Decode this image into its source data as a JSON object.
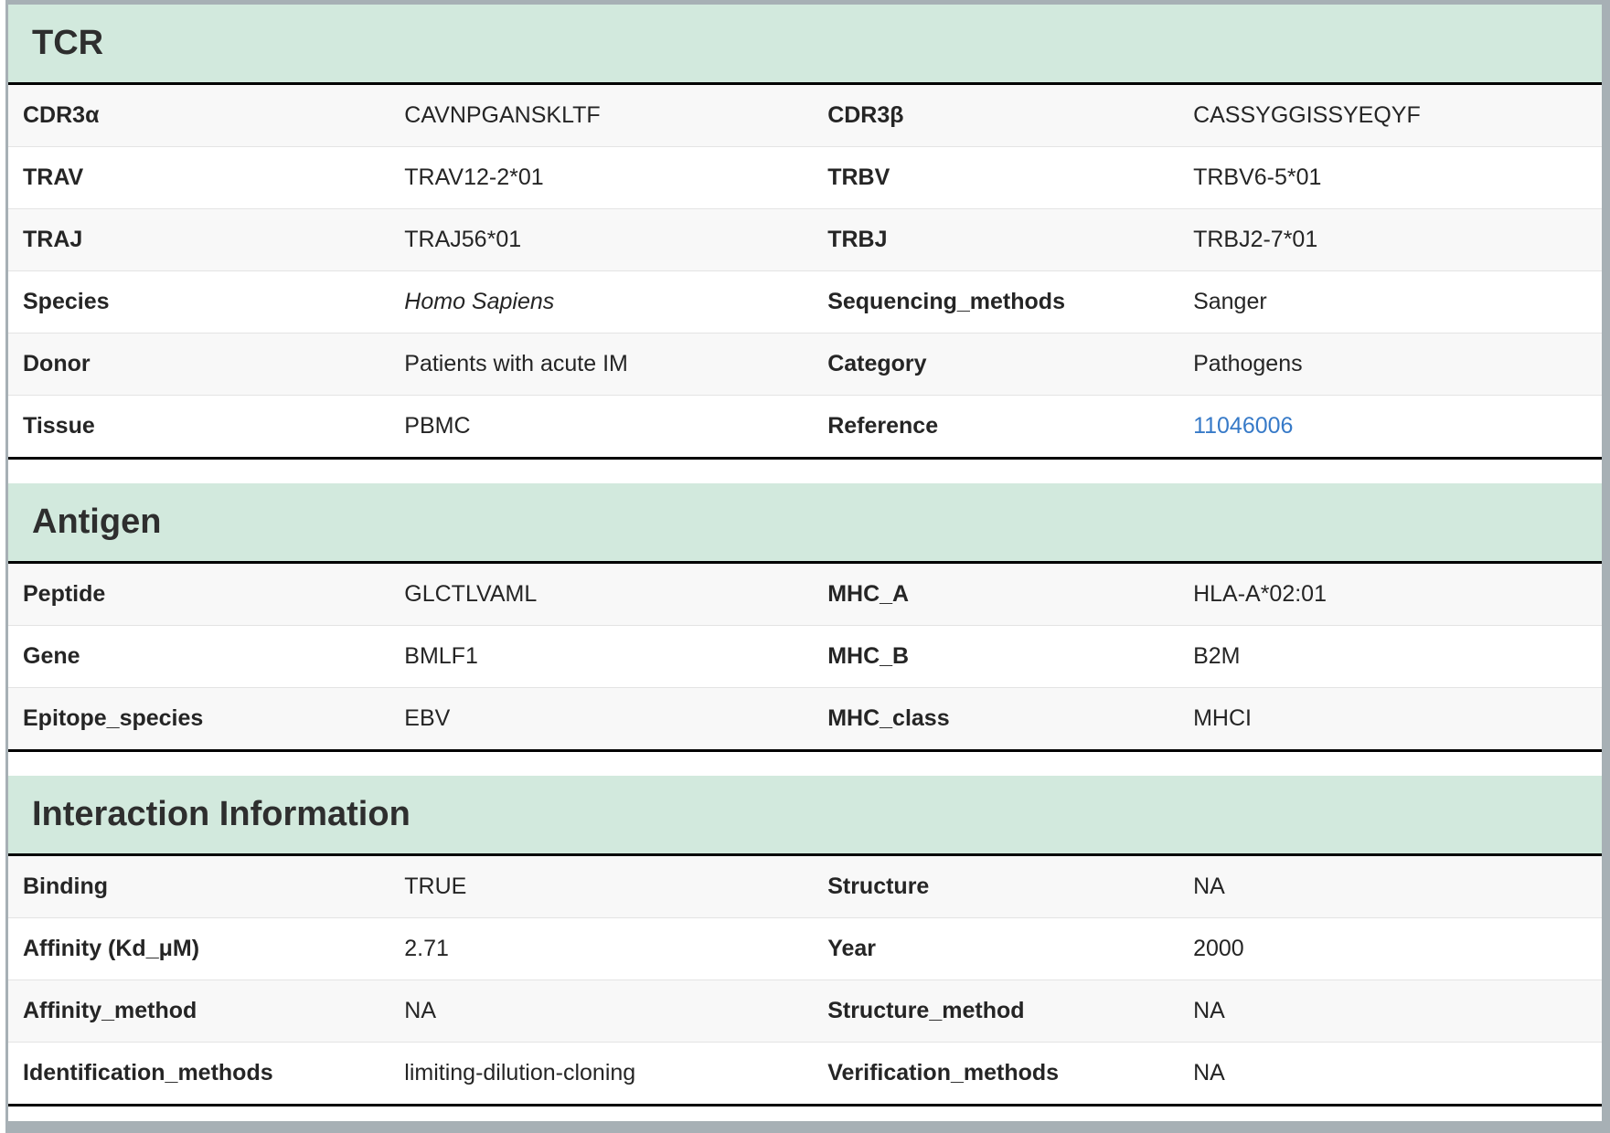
{
  "colors": {
    "section_header_bg": "#d2e9dd",
    "striped_row_bg": "#f8f8f8",
    "frame_gray": "#a7b0b5",
    "section_border": "#000000",
    "link_blue": "#377ac8"
  },
  "tcr": {
    "title": "TCR",
    "rows": [
      {
        "l1": "CDR3α",
        "v1": "CAVNPGANSKLTF",
        "l2": "CDR3β",
        "v2": "CASSYGGISSYEQYF"
      },
      {
        "l1": "TRAV",
        "v1": "TRAV12-2*01",
        "l2": "TRBV",
        "v2": "TRBV6-5*01"
      },
      {
        "l1": "TRAJ",
        "v1": "TRAJ56*01",
        "l2": "TRBJ",
        "v2": "TRBJ2-7*01"
      },
      {
        "l1": "Species",
        "v1": "Homo Sapiens",
        "l2": "Sequencing_methods",
        "v2": "Sanger"
      },
      {
        "l1": "Donor",
        "v1": "Patients with acute IM",
        "l2": "Category",
        "v2": "Pathogens"
      },
      {
        "l1": "Tissue",
        "v1": "PBMC",
        "l2": "Reference",
        "v2": "11046006"
      }
    ]
  },
  "antigen": {
    "title": "Antigen",
    "rows": [
      {
        "l1": "Peptide",
        "v1": "GLCTLVAML",
        "l2": "MHC_A",
        "v2": "HLA-A*02:01"
      },
      {
        "l1": "Gene",
        "v1": "BMLF1",
        "l2": "MHC_B",
        "v2": "B2M"
      },
      {
        "l1": "Epitope_species",
        "v1": "EBV",
        "l2": "MHC_class",
        "v2": "MHCI"
      }
    ]
  },
  "interaction": {
    "title": "Interaction Information",
    "rows": [
      {
        "l1": "Binding",
        "v1": "TRUE",
        "l2": "Structure",
        "v2": "NA"
      },
      {
        "l1": "Affinity (Kd_μM)",
        "v1": "2.71",
        "l2": "Year",
        "v2": "2000"
      },
      {
        "l1": "Affinity_method",
        "v1": "NA",
        "l2": "Structure_method",
        "v2": "NA"
      },
      {
        "l1": "Identification_methods",
        "v1": "limiting-dilution-cloning",
        "l2": "Verification_methods",
        "v2": "NA"
      }
    ]
  }
}
